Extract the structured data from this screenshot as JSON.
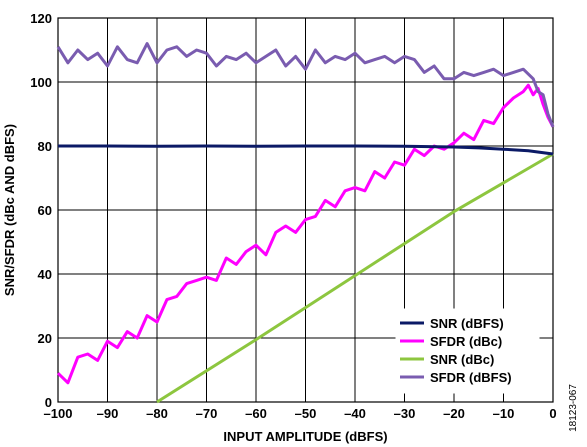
{
  "chart_data": {
    "type": "line",
    "title": "",
    "xlabel": "INPUT AMPLITUDE (dBFS)",
    "ylabel": "SNR/SFDR (dBc AND dBFS)",
    "xlim": [
      -100,
      0
    ],
    "ylim": [
      0,
      120
    ],
    "x_ticks": [
      "–100",
      "–90",
      "–80",
      "–70",
      "–60",
      "–50",
      "–40",
      "–30",
      "–20",
      "–10",
      "0"
    ],
    "y_ticks": [
      "0",
      "20",
      "40",
      "60",
      "80",
      "100",
      "120"
    ],
    "grid": true,
    "legend_position": "bottom-right",
    "figure_id": "18123-067",
    "series": [
      {
        "name": "SNR (dBFS)",
        "color": "#0b1a66",
        "x": [
          -100,
          -90,
          -80,
          -70,
          -60,
          -50,
          -40,
          -30,
          -20,
          -15,
          -10,
          -5,
          0
        ],
        "y": [
          80,
          80,
          79.9,
          80,
          79.9,
          80,
          80,
          79.9,
          79.7,
          79.4,
          79,
          78.5,
          77.5
        ]
      },
      {
        "name": "SFDR (dBc)",
        "color": "#ff00ff",
        "x": [
          -100,
          -98,
          -96,
          -94,
          -92,
          -90,
          -88,
          -86,
          -84,
          -82,
          -80,
          -78,
          -76,
          -74,
          -72,
          -70,
          -68,
          -66,
          -64,
          -62,
          -60,
          -58,
          -56,
          -54,
          -52,
          -50,
          -48,
          -46,
          -44,
          -42,
          -40,
          -38,
          -36,
          -34,
          -32,
          -30,
          -28,
          -26,
          -24,
          -22,
          -20,
          -18,
          -16,
          -14,
          -12,
          -10,
          -8,
          -6,
          -5,
          -4,
          -3,
          -2,
          -1,
          0
        ],
        "y": [
          9,
          6,
          14,
          15,
          13,
          19,
          17,
          22,
          20,
          27,
          25,
          32,
          33,
          37,
          38,
          39,
          38,
          45,
          43,
          47,
          49,
          46,
          53,
          55,
          53,
          57,
          58,
          63,
          61,
          66,
          67,
          66,
          72,
          70,
          75,
          74,
          79,
          77,
          80,
          79,
          81,
          84,
          82,
          88,
          87,
          92,
          95,
          97,
          99,
          96,
          98,
          93,
          89,
          86
        ]
      },
      {
        "name": "SNR (dBc)",
        "color": "#8dc63f",
        "x": [
          -80,
          -60,
          -40,
          -20,
          0
        ],
        "y": [
          0,
          19.5,
          39.5,
          59.5,
          77.5
        ]
      },
      {
        "name": "SFDR (dBFS)",
        "color": "#7a5cb0",
        "x": [
          -100,
          -98,
          -96,
          -94,
          -92,
          -90,
          -88,
          -86,
          -84,
          -82,
          -80,
          -78,
          -76,
          -74,
          -72,
          -70,
          -68,
          -66,
          -64,
          -62,
          -60,
          -58,
          -56,
          -54,
          -52,
          -50,
          -48,
          -46,
          -44,
          -42,
          -40,
          -38,
          -36,
          -34,
          -32,
          -30,
          -28,
          -26,
          -24,
          -22,
          -20,
          -18,
          -16,
          -14,
          -12,
          -10,
          -8,
          -6,
          -4,
          -3,
          -2,
          -1,
          0
        ],
        "y": [
          111,
          106,
          110,
          107,
          109,
          105,
          111,
          107,
          106,
          112,
          106,
          110,
          111,
          108,
          110,
          109,
          105,
          108,
          107,
          109,
          106,
          108,
          110,
          105,
          108,
          104,
          110,
          106,
          108,
          107,
          109,
          106,
          107,
          108,
          106,
          108,
          107,
          103,
          105,
          101,
          101,
          103,
          102,
          103,
          104,
          102,
          103,
          104,
          101,
          97,
          96,
          90,
          86
        ]
      }
    ]
  }
}
